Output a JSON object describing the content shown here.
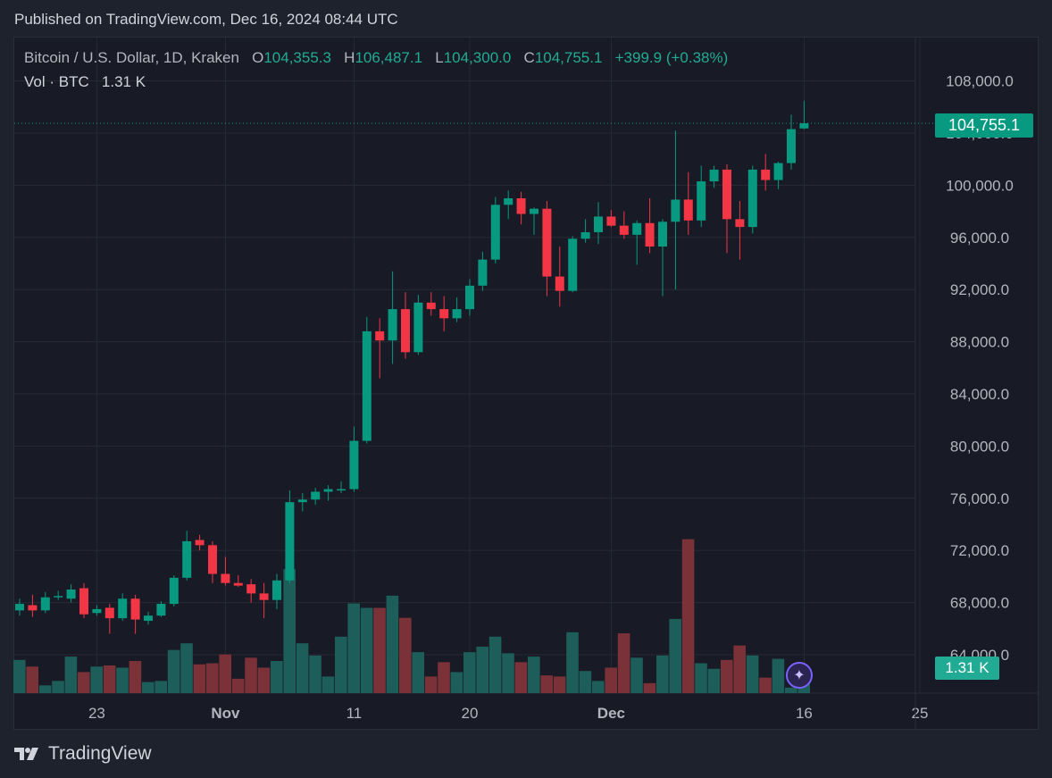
{
  "published": "Published on TradingView.com, Dec 16, 2024 08:44 UTC",
  "legend": {
    "symbol": "Bitcoin / U.S. Dollar, 1D, Kraken",
    "o_label": "O",
    "o_value": "104,355.3",
    "h_label": "H",
    "h_value": "106,487.1",
    "l_label": "L",
    "l_value": "104,300.0",
    "c_label": "C",
    "c_value": "104,755.1",
    "change": "+399.9 (+0.38%)",
    "vol_label": "Vol · BTC",
    "vol_value": "1.31 K"
  },
  "last_price_tag": "104,755.1",
  "volume_tag": "1.31 K",
  "branding": "TradingView",
  "colors": {
    "up": "#089981",
    "down": "#f23645",
    "vol_up": "#1d5e5a",
    "vol_down": "#7a3137",
    "grid": "#262a35",
    "axis_text": "#b2b5be"
  },
  "icons": {
    "assistant": "sparkle-icon",
    "logo": "tradingview-logo-icon"
  },
  "chart_data": {
    "type": "candlestick",
    "symbol": "Bitcoin / U.S. Dollar",
    "interval": "1D",
    "exchange": "Kraken",
    "y_ticks": [
      "64,000.0",
      "68,000.0",
      "72,000.0",
      "76,000.0",
      "80,000.0",
      "84,000.0",
      "88,000.0",
      "92,000.0",
      "96,000.0",
      "100,000.0",
      "104,000.0",
      "108,000.0"
    ],
    "y_tick_values": [
      64000,
      68000,
      72000,
      76000,
      80000,
      84000,
      88000,
      92000,
      96000,
      100000,
      104000,
      108000
    ],
    "x_ticks": [
      "23",
      "Nov",
      "11",
      "20",
      "Dec",
      "16",
      "25"
    ],
    "x_tick_index": [
      6,
      16,
      26,
      35,
      46,
      61,
      70
    ],
    "ylim": [
      61000,
      110000
    ],
    "candles": [
      {
        "o": 67400,
        "h": 68300,
        "l": 67000,
        "c": 67900,
        "v": 3.0
      },
      {
        "o": 67800,
        "h": 68600,
        "l": 66900,
        "c": 67400,
        "v": 2.4
      },
      {
        "o": 67400,
        "h": 68800,
        "l": 67200,
        "c": 68400,
        "v": 0.7
      },
      {
        "o": 68500,
        "h": 68900,
        "l": 68200,
        "c": 68500,
        "v": 1.1
      },
      {
        "o": 68300,
        "h": 69400,
        "l": 68000,
        "c": 69000,
        "v": 3.3
      },
      {
        "o": 69100,
        "h": 69500,
        "l": 66800,
        "c": 67100,
        "v": 1.9
      },
      {
        "o": 67200,
        "h": 67800,
        "l": 67000,
        "c": 67500,
        "v": 2.4
      },
      {
        "o": 67600,
        "h": 67900,
        "l": 65600,
        "c": 66800,
        "v": 2.5
      },
      {
        "o": 66800,
        "h": 68700,
        "l": 66600,
        "c": 68300,
        "v": 2.3
      },
      {
        "o": 68300,
        "h": 68600,
        "l": 65600,
        "c": 66700,
        "v": 2.9
      },
      {
        "o": 66600,
        "h": 67300,
        "l": 66300,
        "c": 67000,
        "v": 1.0
      },
      {
        "o": 67000,
        "h": 68100,
        "l": 66900,
        "c": 67900,
        "v": 1.1
      },
      {
        "o": 67900,
        "h": 70100,
        "l": 67700,
        "c": 69900,
        "v": 3.9
      },
      {
        "o": 69900,
        "h": 73500,
        "l": 69700,
        "c": 72700,
        "v": 4.5
      },
      {
        "o": 72800,
        "h": 73200,
        "l": 72000,
        "c": 72400,
        "v": 2.6
      },
      {
        "o": 72400,
        "h": 72700,
        "l": 69500,
        "c": 70200,
        "v": 2.7
      },
      {
        "o": 70200,
        "h": 71500,
        "l": 69300,
        "c": 69500,
        "v": 3.5
      },
      {
        "o": 69500,
        "h": 70100,
        "l": 69200,
        "c": 69300,
        "v": 1.3
      },
      {
        "o": 69400,
        "h": 69800,
        "l": 68000,
        "c": 68700,
        "v": 3.2
      },
      {
        "o": 68700,
        "h": 69500,
        "l": 66800,
        "c": 68200,
        "v": 2.3
      },
      {
        "o": 68200,
        "h": 70200,
        "l": 67500,
        "c": 69700,
        "v": 2.9
      },
      {
        "o": 69700,
        "h": 76600,
        "l": 69500,
        "c": 75700,
        "v": 11.2
      },
      {
        "o": 75700,
        "h": 76400,
        "l": 75000,
        "c": 75900,
        "v": 4.5
      },
      {
        "o": 75900,
        "h": 76800,
        "l": 75500,
        "c": 76500,
        "v": 3.4
      },
      {
        "o": 76500,
        "h": 77000,
        "l": 75800,
        "c": 76700,
        "v": 1.5
      },
      {
        "o": 76700,
        "h": 77300,
        "l": 76400,
        "c": 76700,
        "v": 5.1
      },
      {
        "o": 76700,
        "h": 81500,
        "l": 76500,
        "c": 80400,
        "v": 8.1
      },
      {
        "o": 80400,
        "h": 89900,
        "l": 80200,
        "c": 88800,
        "v": 7.7
      },
      {
        "o": 88800,
        "h": 89800,
        "l": 85200,
        "c": 88100,
        "v": 7.7
      },
      {
        "o": 88100,
        "h": 93400,
        "l": 86300,
        "c": 90500,
        "v": 8.8
      },
      {
        "o": 90500,
        "h": 91800,
        "l": 86700,
        "c": 87200,
        "v": 6.8
      },
      {
        "o": 87200,
        "h": 91600,
        "l": 87000,
        "c": 91000,
        "v": 3.7
      },
      {
        "o": 91000,
        "h": 91800,
        "l": 90000,
        "c": 90500,
        "v": 1.5
      },
      {
        "o": 90500,
        "h": 91500,
        "l": 88800,
        "c": 89800,
        "v": 2.8
      },
      {
        "o": 89800,
        "h": 91400,
        "l": 89500,
        "c": 90500,
        "v": 1.9
      },
      {
        "o": 90500,
        "h": 92800,
        "l": 90000,
        "c": 92300,
        "v": 3.7
      },
      {
        "o": 92300,
        "h": 94900,
        "l": 91900,
        "c": 94300,
        "v": 4.2
      },
      {
        "o": 94300,
        "h": 99100,
        "l": 94000,
        "c": 98500,
        "v": 5.1
      },
      {
        "o": 98500,
        "h": 99600,
        "l": 97400,
        "c": 99000,
        "v": 3.6
      },
      {
        "o": 99000,
        "h": 99500,
        "l": 97000,
        "c": 97800,
        "v": 2.8
      },
      {
        "o": 97800,
        "h": 98300,
        "l": 96200,
        "c": 98200,
        "v": 3.3
      },
      {
        "o": 98200,
        "h": 98800,
        "l": 91500,
        "c": 93000,
        "v": 1.6
      },
      {
        "o": 93000,
        "h": 95300,
        "l": 90700,
        "c": 91900,
        "v": 1.5
      },
      {
        "o": 91900,
        "h": 96100,
        "l": 91800,
        "c": 95900,
        "v": 5.5
      },
      {
        "o": 95900,
        "h": 97400,
        "l": 95600,
        "c": 96400,
        "v": 2.0
      },
      {
        "o": 96400,
        "h": 98700,
        "l": 95500,
        "c": 97600,
        "v": 1.1
      },
      {
        "o": 97600,
        "h": 98100,
        "l": 96800,
        "c": 96900,
        "v": 2.3
      },
      {
        "o": 96900,
        "h": 98000,
        "l": 95900,
        "c": 96200,
        "v": 5.4
      },
      {
        "o": 96200,
        "h": 97300,
        "l": 93900,
        "c": 97100,
        "v": 3.2
      },
      {
        "o": 97100,
        "h": 99000,
        "l": 94800,
        "c": 95300,
        "v": 0.9
      },
      {
        "o": 95300,
        "h": 97400,
        "l": 91500,
        "c": 97200,
        "v": 3.4
      },
      {
        "o": 97200,
        "h": 104200,
        "l": 92000,
        "c": 98900,
        "v": 6.7
      },
      {
        "o": 98900,
        "h": 101000,
        "l": 96200,
        "c": 97300,
        "v": 13.9
      },
      {
        "o": 97300,
        "h": 101500,
        "l": 96800,
        "c": 100300,
        "v": 2.7
      },
      {
        "o": 100300,
        "h": 101500,
        "l": 99800,
        "c": 101200,
        "v": 2.2
      },
      {
        "o": 101200,
        "h": 101600,
        "l": 94800,
        "c": 97400,
        "v": 3.0
      },
      {
        "o": 97400,
        "h": 98800,
        "l": 94300,
        "c": 96800,
        "v": 4.3
      },
      {
        "o": 96800,
        "h": 101500,
        "l": 96300,
        "c": 101200,
        "v": 3.4
      },
      {
        "o": 101200,
        "h": 102400,
        "l": 99600,
        "c": 100400,
        "v": 1.4
      },
      {
        "o": 100400,
        "h": 101800,
        "l": 99700,
        "c": 101700,
        "v": 3.1
      },
      {
        "o": 101700,
        "h": 105400,
        "l": 101200,
        "c": 104300,
        "v": 0.5
      },
      {
        "o": 104355,
        "h": 106487,
        "l": 104300,
        "c": 104755,
        "v": 1.31
      }
    ],
    "last_price": 104755.1,
    "volume_unit": "K BTC"
  }
}
